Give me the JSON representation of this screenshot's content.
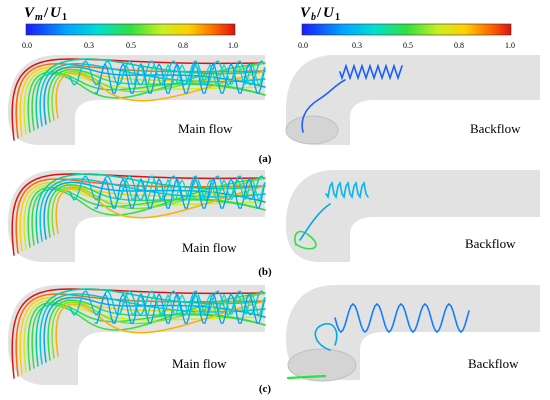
{
  "colorbars": [
    {
      "title_main": "V",
      "title_sub": "m",
      "title_slash": "/",
      "title_u": "U",
      "title_u_sub": "1",
      "ticks": [
        "0.0",
        "0.3",
        "0.5",
        "0.8",
        "1.0"
      ],
      "colors": [
        "#1a1aff",
        "#00a0ff",
        "#00e0d0",
        "#30e040",
        "#c8f020",
        "#ffd000",
        "#ff6a00",
        "#e01010"
      ]
    },
    {
      "title_main": "V",
      "title_sub": "b",
      "title_slash": "/",
      "title_u": "U",
      "title_u_sub": "1",
      "ticks": [
        "0.0",
        "0.3",
        "0.5",
        "0.8",
        "1.0"
      ],
      "colors": [
        "#1a1aff",
        "#00a0ff",
        "#00e0d0",
        "#30e040",
        "#c8f020",
        "#ffd000",
        "#ff6a00",
        "#e01010"
      ]
    }
  ],
  "rows": [
    {
      "tag": "(a)",
      "left_label": "Main flow",
      "right_label": "Backflow"
    },
    {
      "tag": "(b)",
      "left_label": "Main flow",
      "right_label": "Backflow"
    },
    {
      "tag": "(c)",
      "left_label": "Main flow",
      "right_label": "Backflow"
    }
  ],
  "colors": {
    "pipe": "#e2e2e2",
    "pipe_dark": "#d0d0d0",
    "text": "#000000"
  }
}
